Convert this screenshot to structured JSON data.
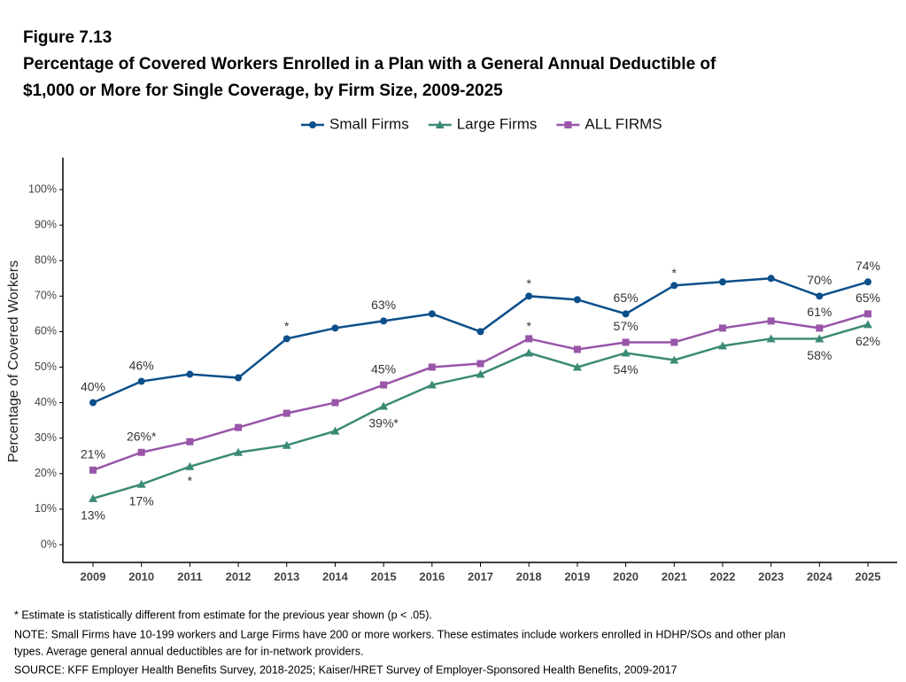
{
  "chart_data": {
    "type": "line",
    "figure_label": "Figure 7.13",
    "title": [
      "Percentage of Covered Workers Enrolled in a Plan with a General Annual Deductible of",
      "$1,000 or More for Single Coverage, by Firm Size, 2009-2025"
    ],
    "y_label": "Percentage of Covered Workers",
    "categories": [
      "2009",
      "2010",
      "2011",
      "2012",
      "2013",
      "2014",
      "2015",
      "2016",
      "2017",
      "2018",
      "2019",
      "2020",
      "2021",
      "2022",
      "2023",
      "2024",
      "2025"
    ],
    "series": [
      {
        "name": "Small Firms",
        "color": "#0b4f8a",
        "marker": "circle",
        "values": [
          40,
          46,
          48,
          47,
          58,
          61,
          63,
          65,
          60,
          70,
          69,
          65,
          73,
          74,
          75,
          70,
          74
        ],
        "value_labels": [
          "40%",
          "46%",
          null,
          null,
          "*",
          null,
          "63%",
          null,
          null,
          "*",
          null,
          "65%",
          "*",
          null,
          null,
          "70%",
          "74%"
        ]
      },
      {
        "name": "Large Firms",
        "color": "#3b8a76",
        "marker": "triangle",
        "values": [
          13,
          17,
          22,
          26,
          28,
          32,
          39,
          45,
          48,
          54,
          50,
          54,
          52,
          56,
          58,
          58,
          62
        ],
        "value_labels": [
          "13%",
          "17%",
          "*",
          null,
          null,
          null,
          "39%*",
          null,
          null,
          null,
          null,
          "54%",
          null,
          null,
          null,
          "58%",
          "62%"
        ]
      },
      {
        "name": "ALL FIRMS",
        "color": "#9955a8",
        "marker": "square",
        "values": [
          21,
          26,
          29,
          33,
          37,
          40,
          45,
          50,
          51,
          58,
          55,
          57,
          57,
          61,
          63,
          61,
          65
        ],
        "value_labels": [
          "21%",
          "26%*",
          null,
          null,
          null,
          null,
          "45%",
          null,
          null,
          "*",
          null,
          "57%",
          null,
          null,
          null,
          "61%",
          "65%"
        ]
      }
    ],
    "ylim": [
      -5,
      109
    ],
    "yticks": [
      {
        "value": 0,
        "label": "0%"
      },
      {
        "value": 10,
        "label": "10%"
      },
      {
        "value": 20,
        "label": "20%"
      },
      {
        "value": 30,
        "label": "30%"
      },
      {
        "value": 40,
        "label": "40%"
      },
      {
        "value": 50,
        "label": "50%"
      },
      {
        "value": 60,
        "label": "60%"
      },
      {
        "value": 70,
        "label": "70%"
      },
      {
        "value": 80,
        "label": "80%"
      },
      {
        "value": 90,
        "label": "90%"
      },
      {
        "value": 100,
        "label": "100%"
      }
    ],
    "grid": false,
    "legend": "top",
    "notes": [
      "* Estimate is statistically different from estimate for the previous year shown (p < .05).",
      "NOTE: Small Firms have 10-199 workers and Large Firms have 200 or more workers. These estimates include workers enrolled in HDHP/SOs and other plan",
      "types. Average general annual deductibles are for in-network providers.",
      "SOURCE: KFF Employer Health Benefits Survey, 2018-2025; Kaiser/HRET Survey of Employer-Sponsored Health Benefits, 2009-2017"
    ]
  }
}
